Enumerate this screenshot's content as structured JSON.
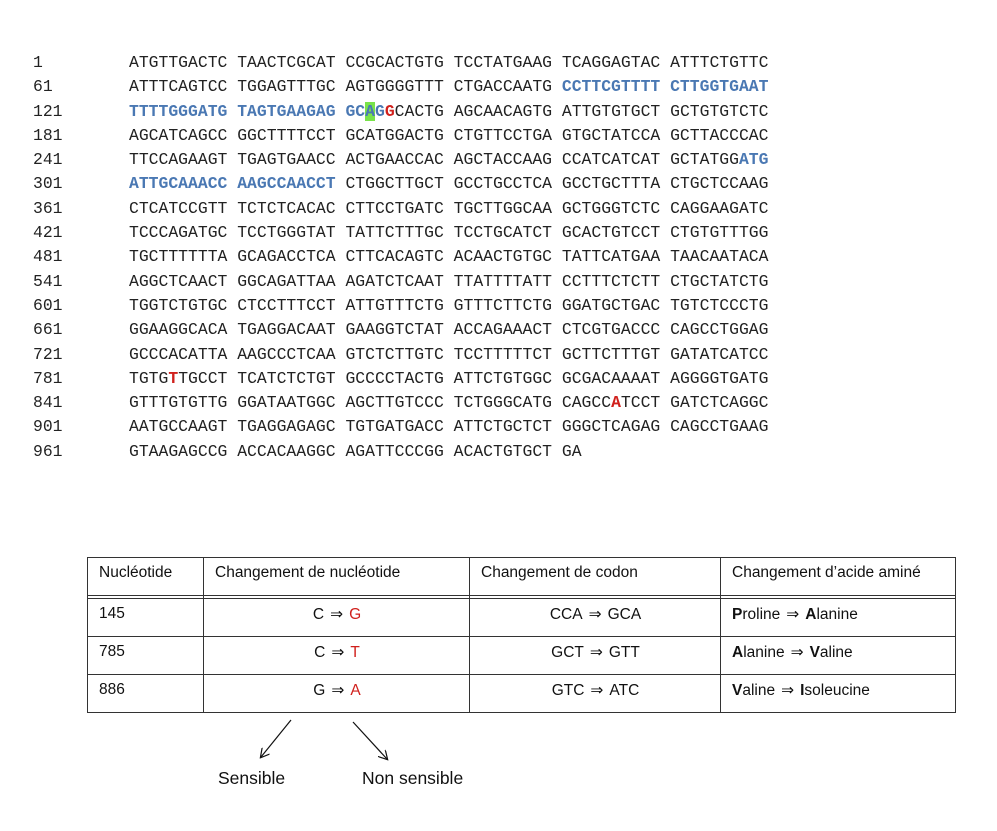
{
  "sequence": {
    "lines": [
      {
        "pos": "1",
        "blocks": [
          [
            [
              "ATGTTGACTC",
              ""
            ]
          ],
          [
            [
              "TAACTCGCAT",
              ""
            ]
          ],
          [
            [
              "CCGCACTGTG",
              ""
            ]
          ],
          [
            [
              "TCCTATGAAG",
              ""
            ]
          ],
          [
            [
              "TCAGGAGTAC",
              ""
            ]
          ],
          [
            [
              "ATTTCTGTTC",
              ""
            ]
          ]
        ]
      },
      {
        "pos": "61",
        "blocks": [
          [
            [
              "ATTTCAGTCC",
              ""
            ]
          ],
          [
            [
              "TGGAGTTTGC",
              ""
            ]
          ],
          [
            [
              "AGTGGGGTTT",
              ""
            ]
          ],
          [
            [
              "CTGACCAATG",
              ""
            ]
          ],
          [
            [
              "CCTTCGTTTT",
              "primer"
            ]
          ],
          [
            [
              "CTTGGTGAAT",
              "primer"
            ]
          ]
        ]
      },
      {
        "pos": "121",
        "blocks": [
          [
            [
              "TTTTGGGATG",
              "primer"
            ]
          ],
          [
            [
              "TAGTGAAGAG",
              "primer"
            ]
          ],
          [
            [
              "GC",
              "primer"
            ],
            [
              "A",
              "hl"
            ],
            [
              "G",
              "primer"
            ],
            [
              "G",
              "mut"
            ],
            [
              "CACTG",
              ""
            ]
          ],
          [
            [
              "AGCAACAGTG",
              ""
            ]
          ],
          [
            [
              "ATTGTGTGCT",
              ""
            ]
          ],
          [
            [
              "GCTGTGTCTC",
              ""
            ]
          ]
        ]
      },
      {
        "pos": "181",
        "blocks": [
          [
            [
              "AGCATCAGCC",
              ""
            ]
          ],
          [
            [
              "GGCTTTTCCT",
              ""
            ]
          ],
          [
            [
              "GCATGGACTG",
              ""
            ]
          ],
          [
            [
              "CTGTTCCTGA",
              ""
            ]
          ],
          [
            [
              "GTGCTATCCA",
              ""
            ]
          ],
          [
            [
              "GCTTACCCAC",
              ""
            ]
          ]
        ]
      },
      {
        "pos": "241",
        "blocks": [
          [
            [
              "TTCCAGAAGT",
              ""
            ]
          ],
          [
            [
              "TGAGTGAACC",
              ""
            ]
          ],
          [
            [
              "ACTGAACCAC",
              ""
            ]
          ],
          [
            [
              "AGCTACCAAG",
              ""
            ]
          ],
          [
            [
              "CCATCATCAT",
              ""
            ]
          ],
          [
            [
              "GCTATGG",
              ""
            ],
            [
              "ATG",
              "primer"
            ]
          ]
        ]
      },
      {
        "pos": "301",
        "blocks": [
          [
            [
              "ATTGCAAACC",
              "primer"
            ]
          ],
          [
            [
              "AAGCCAACCT",
              "primer"
            ]
          ],
          [
            [
              "CTGGCTTGCT",
              ""
            ]
          ],
          [
            [
              "GCCTGCCTCA",
              ""
            ]
          ],
          [
            [
              "GCCTGCTTTA",
              ""
            ]
          ],
          [
            [
              "CTGCTCCAAG",
              ""
            ]
          ]
        ]
      },
      {
        "pos": "361",
        "blocks": [
          [
            [
              "CTCATCCGTT",
              ""
            ]
          ],
          [
            [
              "TCTCTCACAC",
              ""
            ]
          ],
          [
            [
              "CTTCCTGATC",
              ""
            ]
          ],
          [
            [
              "TGCTTGGCAA",
              ""
            ]
          ],
          [
            [
              "GCTGGGTCTC",
              ""
            ]
          ],
          [
            [
              "CAGGAAGATC",
              ""
            ]
          ]
        ]
      },
      {
        "pos": "421",
        "blocks": [
          [
            [
              "TCCCAGATGC",
              ""
            ]
          ],
          [
            [
              "TCCTGGGTAT",
              ""
            ]
          ],
          [
            [
              "TATTCTTTGC",
              ""
            ]
          ],
          [
            [
              "TCCTGCATCT",
              ""
            ]
          ],
          [
            [
              "GCACTGTCCT",
              ""
            ]
          ],
          [
            [
              "CTGTGTTTGG",
              ""
            ]
          ]
        ]
      },
      {
        "pos": "481",
        "blocks": [
          [
            [
              "TGCTTTTTTA",
              ""
            ]
          ],
          [
            [
              "GCAGACCTCA",
              ""
            ]
          ],
          [
            [
              "CTTCACAGTC",
              ""
            ]
          ],
          [
            [
              "ACAACTGTGC",
              ""
            ]
          ],
          [
            [
              "TATTCATGAA",
              ""
            ]
          ],
          [
            [
              "TAACAATACA",
              ""
            ]
          ]
        ]
      },
      {
        "pos": "541",
        "blocks": [
          [
            [
              "AGGCTCAACT",
              ""
            ]
          ],
          [
            [
              "GGCAGATTAA",
              ""
            ]
          ],
          [
            [
              "AGATCTCAAT",
              ""
            ]
          ],
          [
            [
              "TTATTTTATT",
              ""
            ]
          ],
          [
            [
              "CCTTTCTCTT",
              ""
            ]
          ],
          [
            [
              "CTGCTATCTG",
              ""
            ]
          ]
        ]
      },
      {
        "pos": "601",
        "blocks": [
          [
            [
              "TGGTCTGTGC",
              ""
            ]
          ],
          [
            [
              "CTCCTTTCCT",
              ""
            ]
          ],
          [
            [
              "ATTGTTTCTG",
              ""
            ]
          ],
          [
            [
              "GTTTCTTCTG",
              ""
            ]
          ],
          [
            [
              "GGATGCTGAC",
              ""
            ]
          ],
          [
            [
              "TGTCTCCCTG",
              ""
            ]
          ]
        ]
      },
      {
        "pos": "661",
        "blocks": [
          [
            [
              "GGAAGGCACA",
              ""
            ]
          ],
          [
            [
              "TGAGGACAAT",
              ""
            ]
          ],
          [
            [
              "GAAGGTCTAT",
              ""
            ]
          ],
          [
            [
              "ACCAGAAACT",
              ""
            ]
          ],
          [
            [
              "CTCGTGACCC",
              ""
            ]
          ],
          [
            [
              "CAGCCTGGAG",
              ""
            ]
          ]
        ]
      },
      {
        "pos": "721",
        "blocks": [
          [
            [
              "GCCCACATTA",
              ""
            ]
          ],
          [
            [
              "AAGCCCTCAA",
              ""
            ]
          ],
          [
            [
              "GTCTCTTGTC",
              ""
            ]
          ],
          [
            [
              "TCCTTTTTCT",
              ""
            ]
          ],
          [
            [
              "GCTTCTTTGT",
              ""
            ]
          ],
          [
            [
              "GATATCATCC",
              ""
            ]
          ]
        ]
      },
      {
        "pos": "781",
        "blocks": [
          [
            [
              "TGTG",
              ""
            ],
            [
              "T",
              "mut"
            ],
            [
              "TGCCT",
              ""
            ]
          ],
          [
            [
              "TCATCTCTGT",
              ""
            ]
          ],
          [
            [
              "GCCCCTACTG",
              ""
            ]
          ],
          [
            [
              "ATTCTGTGGC",
              ""
            ]
          ],
          [
            [
              "GCGACAAAAT",
              ""
            ]
          ],
          [
            [
              "AGGGGTGATG",
              ""
            ]
          ]
        ]
      },
      {
        "pos": "841",
        "blocks": [
          [
            [
              "GTTTGTGTTG",
              ""
            ]
          ],
          [
            [
              "GGATAATGGC",
              ""
            ]
          ],
          [
            [
              "AGCTTGTCCC",
              ""
            ]
          ],
          [
            [
              "TCTGGGCATG",
              ""
            ]
          ],
          [
            [
              "CAGCC",
              ""
            ],
            [
              "A",
              "mut"
            ],
            [
              "TCCT",
              ""
            ]
          ],
          [
            [
              "GATCTCAGGC",
              ""
            ]
          ]
        ]
      },
      {
        "pos": "901",
        "blocks": [
          [
            [
              "AATGCCAAGT",
              ""
            ]
          ],
          [
            [
              "TGAGGAGAGC",
              ""
            ]
          ],
          [
            [
              "TGTGATGACC",
              ""
            ]
          ],
          [
            [
              "ATTCTGCTCT",
              ""
            ]
          ],
          [
            [
              "GGGCTCAGAG",
              ""
            ]
          ],
          [
            [
              "CAGCCTGAAG",
              ""
            ]
          ]
        ]
      },
      {
        "pos": "961",
        "blocks": [
          [
            [
              "GTAAGAGCCG",
              ""
            ]
          ],
          [
            [
              "ACCACAAGGC",
              ""
            ]
          ],
          [
            [
              "AGATTCCCGG",
              ""
            ]
          ],
          [
            [
              "ACACTGTGCT",
              ""
            ]
          ],
          [
            [
              "GA",
              ""
            ]
          ]
        ]
      }
    ]
  },
  "table": {
    "headers": [
      "Nucléotide",
      "Changement de nucléotide",
      "Changement de codon",
      "Changement d’acide aminé"
    ],
    "arrow": "⇒",
    "rows": [
      {
        "nucleotide": "145",
        "from_base": "C",
        "to_base": "G",
        "codon_from": "CCA",
        "codon_to": "GCA",
        "aa_from_initial": "P",
        "aa_from_rest": "roline",
        "aa_to_initial": "A",
        "aa_to_rest": "lanine"
      },
      {
        "nucleotide": "785",
        "from_base": "C",
        "to_base": "T",
        "codon_from": "GCT",
        "codon_to": "GTT",
        "aa_from_initial": "A",
        "aa_from_rest": "lanine",
        "aa_to_initial": "V",
        "aa_to_rest": "aline"
      },
      {
        "nucleotide": "886",
        "from_base": "G",
        "to_base": "A",
        "codon_from": "GTC",
        "codon_to": "ATC",
        "aa_from_initial": "V",
        "aa_from_rest": "aline",
        "aa_to_initial": "I",
        "aa_to_rest": "soleucine"
      }
    ]
  },
  "annotations": {
    "sense_label": "Sensible",
    "nonsense_label": "Non sensible"
  },
  "colors": {
    "primer": "#4a78b3",
    "mutation": "#d0201c",
    "highlight": "#79e34a"
  }
}
